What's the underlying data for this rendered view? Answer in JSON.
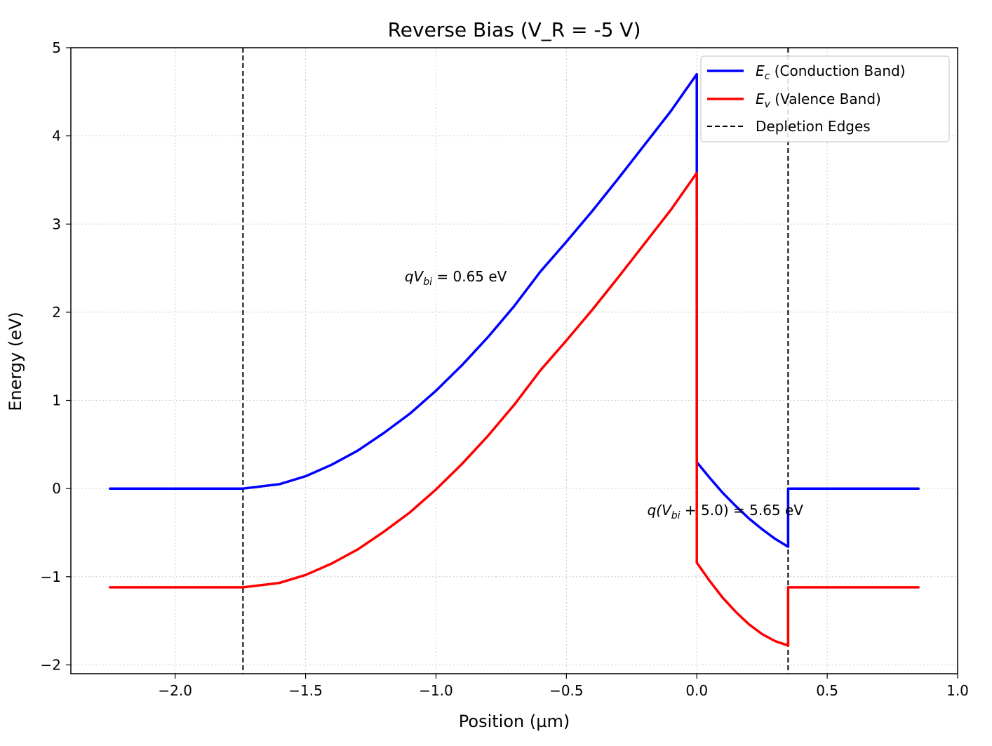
{
  "chart_data": {
    "type": "line",
    "title": "Reverse Bias (V_R = -5 V)",
    "xlabel": "Position (µm)",
    "ylabel": "Energy (eV)",
    "xlim": [
      -2.4,
      1.0
    ],
    "ylim": [
      -2.1,
      5.0
    ],
    "xticks": [
      -2.0,
      -1.5,
      -1.0,
      -0.5,
      0.0,
      0.5,
      1.0
    ],
    "xtick_labels": [
      "−2.0",
      "−1.5",
      "−1.0",
      "−0.5",
      "0.0",
      "0.5",
      "1.0"
    ],
    "yticks": [
      -2,
      -1,
      0,
      1,
      2,
      3,
      4,
      5
    ],
    "ytick_labels": [
      "−2",
      "−1",
      "0",
      "1",
      "2",
      "3",
      "4",
      "5"
    ],
    "grid": true,
    "legend_position": "top-right",
    "series": [
      {
        "name": "Ec (Conduction Band)",
        "legend_main": "E",
        "legend_sub": "c",
        "legend_rest": " (Conduction Band)",
        "color": "#0000ff",
        "points": [
          [
            -2.25,
            0.0
          ],
          [
            -1.74,
            0.0
          ],
          [
            -1.6,
            0.05
          ],
          [
            -1.5,
            0.14
          ],
          [
            -1.4,
            0.27
          ],
          [
            -1.3,
            0.43
          ],
          [
            -1.2,
            0.63
          ],
          [
            -1.1,
            0.85
          ],
          [
            -1.0,
            1.11
          ],
          [
            -0.9,
            1.4
          ],
          [
            -0.8,
            1.72
          ],
          [
            -0.7,
            2.07
          ],
          [
            -0.6,
            2.46
          ],
          [
            -0.5,
            2.8
          ],
          [
            -0.4,
            3.15
          ],
          [
            -0.3,
            3.52
          ],
          [
            -0.2,
            3.9
          ],
          [
            -0.1,
            4.28
          ],
          [
            0.0,
            4.7
          ],
          [
            0.0,
            3.58
          ],
          [
            0.0,
            0.3
          ],
          [
            0.05,
            0.12
          ],
          [
            0.1,
            -0.05
          ],
          [
            0.15,
            -0.2
          ],
          [
            0.2,
            -0.34
          ],
          [
            0.25,
            -0.46
          ],
          [
            0.3,
            -0.57
          ],
          [
            0.35,
            -0.66
          ],
          [
            0.35,
            0.0
          ],
          [
            0.85,
            0.0
          ]
        ]
      },
      {
        "name": "Ev (Valence Band)",
        "legend_main": "E",
        "legend_sub": "v",
        "legend_rest": " (Valence Band)",
        "color": "#ff0000",
        "points": [
          [
            -2.25,
            -1.12
          ],
          [
            -1.74,
            -1.12
          ],
          [
            -1.6,
            -1.07
          ],
          [
            -1.5,
            -0.98
          ],
          [
            -1.4,
            -0.85
          ],
          [
            -1.3,
            -0.69
          ],
          [
            -1.2,
            -0.49
          ],
          [
            -1.1,
            -0.27
          ],
          [
            -1.0,
            -0.01
          ],
          [
            -0.9,
            0.28
          ],
          [
            -0.8,
            0.6
          ],
          [
            -0.7,
            0.95
          ],
          [
            -0.6,
            1.34
          ],
          [
            -0.5,
            1.68
          ],
          [
            -0.4,
            2.03
          ],
          [
            -0.3,
            2.4
          ],
          [
            -0.2,
            2.78
          ],
          [
            -0.1,
            3.16
          ],
          [
            0.0,
            3.58
          ],
          [
            0.0,
            -0.84
          ],
          [
            0.05,
            -1.05
          ],
          [
            0.1,
            -1.24
          ],
          [
            0.15,
            -1.4
          ],
          [
            0.2,
            -1.54
          ],
          [
            0.25,
            -1.65
          ],
          [
            0.3,
            -1.73
          ],
          [
            0.35,
            -1.78
          ],
          [
            0.35,
            -1.12
          ],
          [
            0.85,
            -1.12
          ]
        ]
      }
    ],
    "vlines": {
      "name": "Depletion Edges",
      "x": [
        -1.74,
        0.35
      ],
      "color": "#000000",
      "style": "dashed"
    },
    "annotations": [
      {
        "main": "qV",
        "sub": "bi",
        "rest": " = 0.65 eV",
        "x": -1.12,
        "y": 2.35
      },
      {
        "main": "q(V",
        "sub": "bi",
        "rest": " + 5.0) = 5.65 eV",
        "x": -0.19,
        "y": -0.3
      }
    ]
  }
}
